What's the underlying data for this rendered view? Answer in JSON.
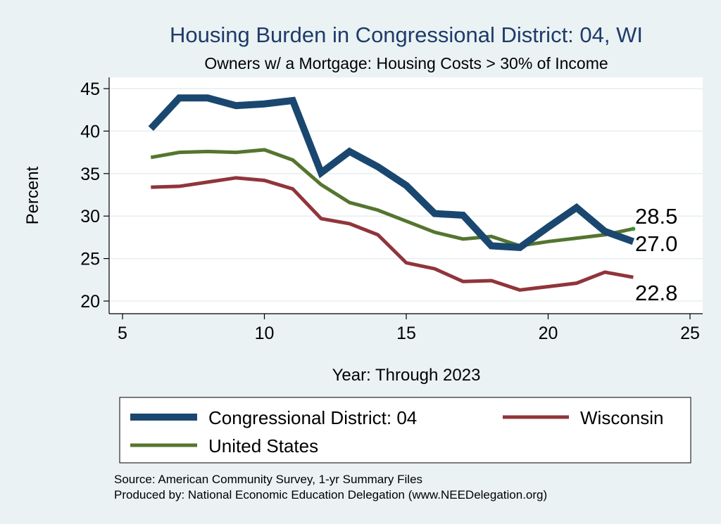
{
  "colors": {
    "background": "#eaf2f3",
    "plot_bg": "#ffffff",
    "grid": "#e6eef0",
    "district": "#1a476f",
    "wisconsin": "#90353b",
    "us": "#55752f",
    "title": "#1f3b6b"
  },
  "notes": {
    "source": "Source: American Community Survey, 1-yr Summary Files",
    "produced": "Produced by: National Economic Education Delegation (www.NEEDelegation.org)"
  },
  "chart_data": {
    "type": "line",
    "title": "Housing Burden in Congressional District:  04, WI",
    "subtitle": "Owners w/ a Mortgage: Housing Costs > 30% of Income",
    "xlabel": "Year: Through 2023",
    "ylabel": "Percent",
    "xlim": [
      5,
      25
    ],
    "ylim": [
      20,
      45
    ],
    "xticks": [
      5,
      10,
      15,
      20,
      25
    ],
    "yticks": [
      20,
      25,
      30,
      35,
      40,
      45
    ],
    "grid": true,
    "legend_position": "bottom",
    "series": [
      {
        "name": "Congressional District:  04",
        "color": "#1a476f",
        "x": [
          6,
          7,
          8,
          9,
          10,
          11,
          12,
          13,
          14,
          15,
          16,
          17,
          18,
          19,
          20,
          21,
          22,
          23
        ],
        "y": [
          40.3,
          43.9,
          43.9,
          43.0,
          43.2,
          43.6,
          35.1,
          37.6,
          35.8,
          33.6,
          30.3,
          30.1,
          26.5,
          26.3,
          28.7,
          31.0,
          28.2,
          27.0
        ],
        "end_label": "27.0"
      },
      {
        "name": "Wisconsin",
        "color": "#90353b",
        "x": [
          6,
          7,
          8,
          9,
          10,
          11,
          12,
          13,
          14,
          15,
          16,
          17,
          18,
          19,
          20,
          21,
          22,
          23
        ],
        "y": [
          33.4,
          33.5,
          34.0,
          34.5,
          34.2,
          33.2,
          29.7,
          29.1,
          27.8,
          24.5,
          23.8,
          22.3,
          22.4,
          21.3,
          21.7,
          22.1,
          23.4,
          22.8
        ],
        "end_label": "22.8"
      },
      {
        "name": "United States",
        "color": "#55752f",
        "x": [
          6,
          7,
          8,
          9,
          10,
          11,
          12,
          13,
          14,
          15,
          16,
          17,
          18,
          19,
          20,
          21,
          22,
          23
        ],
        "y": [
          36.9,
          37.5,
          37.6,
          37.5,
          37.8,
          36.6,
          33.7,
          31.6,
          30.7,
          29.4,
          28.1,
          27.3,
          27.6,
          26.5,
          27.0,
          27.4,
          27.8,
          28.5
        ],
        "end_label": "28.5"
      }
    ]
  }
}
